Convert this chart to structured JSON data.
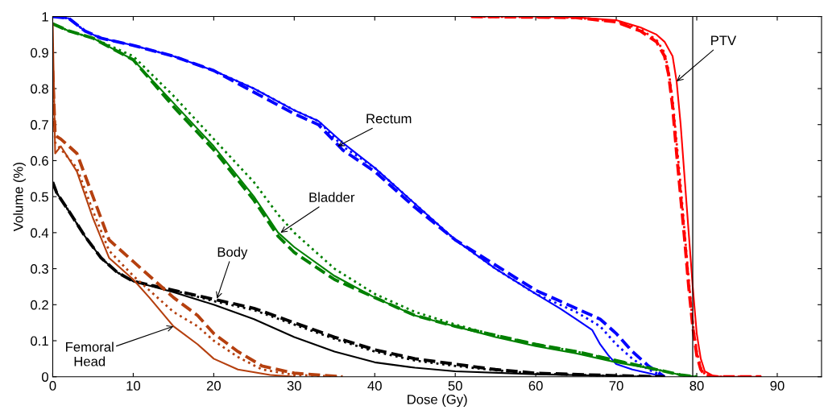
{
  "chart_data": {
    "type": "line",
    "xlabel": "Dose (Gy)",
    "ylabel": "Volume (%)",
    "xlim": [
      0,
      95.5
    ],
    "ylim": [
      0,
      1
    ],
    "xticks": [
      0,
      10,
      20,
      30,
      40,
      50,
      60,
      70,
      80,
      90
    ],
    "yticks": [
      0,
      0.1,
      0.2,
      0.3,
      0.4,
      0.5,
      0.6,
      0.7,
      0.8,
      0.9,
      1
    ],
    "grid": false,
    "legend": false,
    "marker": "none",
    "ref_lines": [
      {
        "axis": "x",
        "value": 79.5,
        "color": "#000000",
        "line_style": "solid"
      }
    ],
    "annotations": [
      {
        "text": "Rectum",
        "x": 35.4,
        "y": 0.64
      },
      {
        "text": "Bladder",
        "x": 28.3,
        "y": 0.4
      },
      {
        "text": "Body",
        "x": 20.4,
        "y": 0.217
      },
      {
        "text": "Femoral\nHead",
        "x": 15,
        "y": 0.14
      },
      {
        "text": "PTV",
        "x": 77.5,
        "y": 0.82
      }
    ],
    "series": [
      {
        "color": "#0000ff",
        "line_style": "solid",
        "x": [
          0,
          2,
          4,
          6,
          10,
          15,
          20,
          25,
          30,
          33,
          36,
          40,
          45,
          50,
          55,
          60,
          63,
          65,
          67,
          68,
          69,
          70,
          72,
          74,
          76
        ],
        "values": [
          1.0,
          0.995,
          0.96,
          0.94,
          0.92,
          0.89,
          0.85,
          0.8,
          0.74,
          0.71,
          0.65,
          0.58,
          0.48,
          0.38,
          0.3,
          0.23,
          0.19,
          0.16,
          0.13,
          0.09,
          0.06,
          0.035,
          0.02,
          0.01,
          0.0
        ]
      },
      {
        "color": "#0000ff",
        "line_style": "dashed",
        "x": [
          0,
          2,
          4,
          6,
          10,
          15,
          20,
          25,
          30,
          33,
          36,
          40,
          45,
          50,
          55,
          60,
          63,
          65,
          68,
          70,
          72,
          74,
          76
        ],
        "values": [
          1.0,
          0.995,
          0.96,
          0.94,
          0.92,
          0.89,
          0.85,
          0.79,
          0.73,
          0.7,
          0.63,
          0.57,
          0.47,
          0.38,
          0.31,
          0.24,
          0.21,
          0.19,
          0.16,
          0.12,
          0.07,
          0.03,
          0.0
        ]
      },
      {
        "color": "#0000ff",
        "line_style": "dotted",
        "x": [
          0,
          2,
          4,
          6,
          10,
          15,
          20,
          25,
          30,
          33,
          36,
          40,
          45,
          50,
          55,
          60,
          63,
          65,
          68,
          70,
          72,
          74,
          76
        ],
        "values": [
          1.0,
          0.995,
          0.96,
          0.94,
          0.92,
          0.89,
          0.85,
          0.8,
          0.74,
          0.71,
          0.64,
          0.58,
          0.48,
          0.38,
          0.3,
          0.23,
          0.2,
          0.18,
          0.14,
          0.09,
          0.05,
          0.02,
          0.0
        ]
      },
      {
        "color": "#008000",
        "line_style": "solid",
        "x": [
          0,
          2,
          5,
          10,
          15,
          20,
          25,
          28,
          30,
          35,
          40,
          45,
          50,
          55,
          60,
          65,
          70,
          75,
          78,
          80
        ],
        "values": [
          0.98,
          0.96,
          0.94,
          0.88,
          0.76,
          0.64,
          0.5,
          0.4,
          0.36,
          0.28,
          0.22,
          0.17,
          0.14,
          0.11,
          0.085,
          0.065,
          0.04,
          0.02,
          0.005,
          0.0
        ]
      },
      {
        "color": "#008000",
        "line_style": "dashed",
        "x": [
          0,
          2,
          5,
          10,
          15,
          20,
          25,
          28,
          30,
          35,
          40,
          45,
          50,
          55,
          60,
          65,
          70,
          75,
          78,
          80
        ],
        "values": [
          0.98,
          0.96,
          0.94,
          0.88,
          0.75,
          0.63,
          0.49,
          0.39,
          0.345,
          0.27,
          0.22,
          0.17,
          0.14,
          0.115,
          0.09,
          0.07,
          0.045,
          0.02,
          0.005,
          0.0
        ]
      },
      {
        "color": "#008000",
        "line_style": "dotted",
        "x": [
          0,
          2,
          5,
          10,
          15,
          20,
          25,
          28,
          30,
          35,
          40,
          45,
          50,
          55,
          60,
          65,
          70,
          75,
          78,
          80
        ],
        "values": [
          0.98,
          0.96,
          0.94,
          0.89,
          0.78,
          0.66,
          0.54,
          0.45,
          0.4,
          0.3,
          0.23,
          0.18,
          0.145,
          0.115,
          0.09,
          0.07,
          0.045,
          0.02,
          0.005,
          0.0
        ]
      },
      {
        "color": "#000000",
        "line_style": "solid",
        "x": [
          0,
          0.5,
          2,
          4,
          6,
          8,
          10,
          15,
          20,
          25,
          30,
          35,
          40,
          45,
          50,
          60,
          70,
          75
        ],
        "values": [
          0.54,
          0.51,
          0.46,
          0.39,
          0.33,
          0.29,
          0.265,
          0.235,
          0.2,
          0.16,
          0.11,
          0.07,
          0.04,
          0.025,
          0.015,
          0.007,
          0.002,
          0.0
        ]
      },
      {
        "color": "#000000",
        "line_style": "dashed",
        "x": [
          0,
          0.5,
          2,
          4,
          6,
          8,
          10,
          15,
          20,
          25,
          30,
          35,
          40,
          45,
          50,
          55,
          60,
          70,
          76
        ],
        "values": [
          0.54,
          0.51,
          0.46,
          0.39,
          0.33,
          0.29,
          0.265,
          0.24,
          0.215,
          0.19,
          0.15,
          0.11,
          0.075,
          0.05,
          0.035,
          0.02,
          0.01,
          0.003,
          0.0
        ]
      },
      {
        "color": "#000000",
        "line_style": "dotted",
        "x": [
          0,
          0.5,
          2,
          4,
          6,
          8,
          10,
          15,
          20,
          25,
          30,
          35,
          40,
          45,
          50,
          55,
          60,
          70,
          76
        ],
        "values": [
          0.54,
          0.51,
          0.46,
          0.39,
          0.33,
          0.29,
          0.265,
          0.24,
          0.21,
          0.185,
          0.145,
          0.105,
          0.07,
          0.045,
          0.03,
          0.018,
          0.009,
          0.002,
          0.0
        ]
      },
      {
        "color": "#b5400f",
        "line_style": "solid",
        "x": [
          0,
          0.3,
          1,
          3,
          5,
          7,
          10,
          12,
          15,
          18,
          20,
          23,
          27,
          30
        ],
        "values": [
          0.98,
          0.62,
          0.64,
          0.57,
          0.44,
          0.33,
          0.27,
          0.22,
          0.14,
          0.09,
          0.05,
          0.02,
          0.005,
          0.0
        ]
      },
      {
        "color": "#b5400f",
        "line_style": "dashed",
        "x": [
          0,
          0.3,
          1,
          3,
          5,
          7,
          10,
          13,
          15,
          18,
          20,
          23,
          26,
          30,
          36
        ],
        "values": [
          0.85,
          0.67,
          0.66,
          0.62,
          0.5,
          0.38,
          0.32,
          0.26,
          0.22,
          0.17,
          0.12,
          0.07,
          0.03,
          0.01,
          0.0
        ]
      },
      {
        "color": "#b5400f",
        "line_style": "dotted",
        "x": [
          0,
          0.3,
          3,
          5,
          7,
          10,
          13,
          15,
          18,
          20,
          23,
          26,
          30,
          36
        ],
        "values": [
          0.85,
          0.65,
          0.58,
          0.46,
          0.35,
          0.28,
          0.22,
          0.18,
          0.14,
          0.1,
          0.055,
          0.02,
          0.005,
          0.0
        ]
      },
      {
        "color": "#ff0000",
        "line_style": "solid",
        "x": [
          52,
          60,
          65,
          70,
          73,
          75,
          76,
          77,
          77.5,
          78,
          78.5,
          79,
          79.5,
          80,
          80.5,
          81,
          82,
          83,
          88
        ],
        "values": [
          1.0,
          1.0,
          0.998,
          0.99,
          0.97,
          0.95,
          0.93,
          0.89,
          0.82,
          0.7,
          0.55,
          0.4,
          0.25,
          0.12,
          0.05,
          0.015,
          0.003,
          0.0,
          0.0
        ]
      },
      {
        "color": "#ff0000",
        "line_style": "dashed",
        "x": [
          52,
          65,
          70,
          73,
          75,
          76,
          76.5,
          77,
          77.5,
          78,
          78.5,
          79,
          79.5,
          80,
          80.5,
          81,
          82,
          88
        ],
        "values": [
          1.0,
          0.997,
          0.985,
          0.96,
          0.93,
          0.89,
          0.84,
          0.75,
          0.62,
          0.5,
          0.38,
          0.25,
          0.14,
          0.06,
          0.02,
          0.005,
          0.0,
          0.0
        ]
      },
      {
        "color": "#ff0000",
        "line_style": "dotted",
        "x": [
          52,
          65,
          70,
          73,
          75,
          76,
          76.5,
          77,
          77.5,
          78,
          78.5,
          79,
          79.5,
          80,
          80.5,
          81,
          82,
          88
        ],
        "values": [
          1.0,
          0.997,
          0.987,
          0.965,
          0.935,
          0.9,
          0.85,
          0.77,
          0.65,
          0.53,
          0.4,
          0.27,
          0.15,
          0.07,
          0.025,
          0.007,
          0.0,
          0.0
        ]
      }
    ]
  }
}
